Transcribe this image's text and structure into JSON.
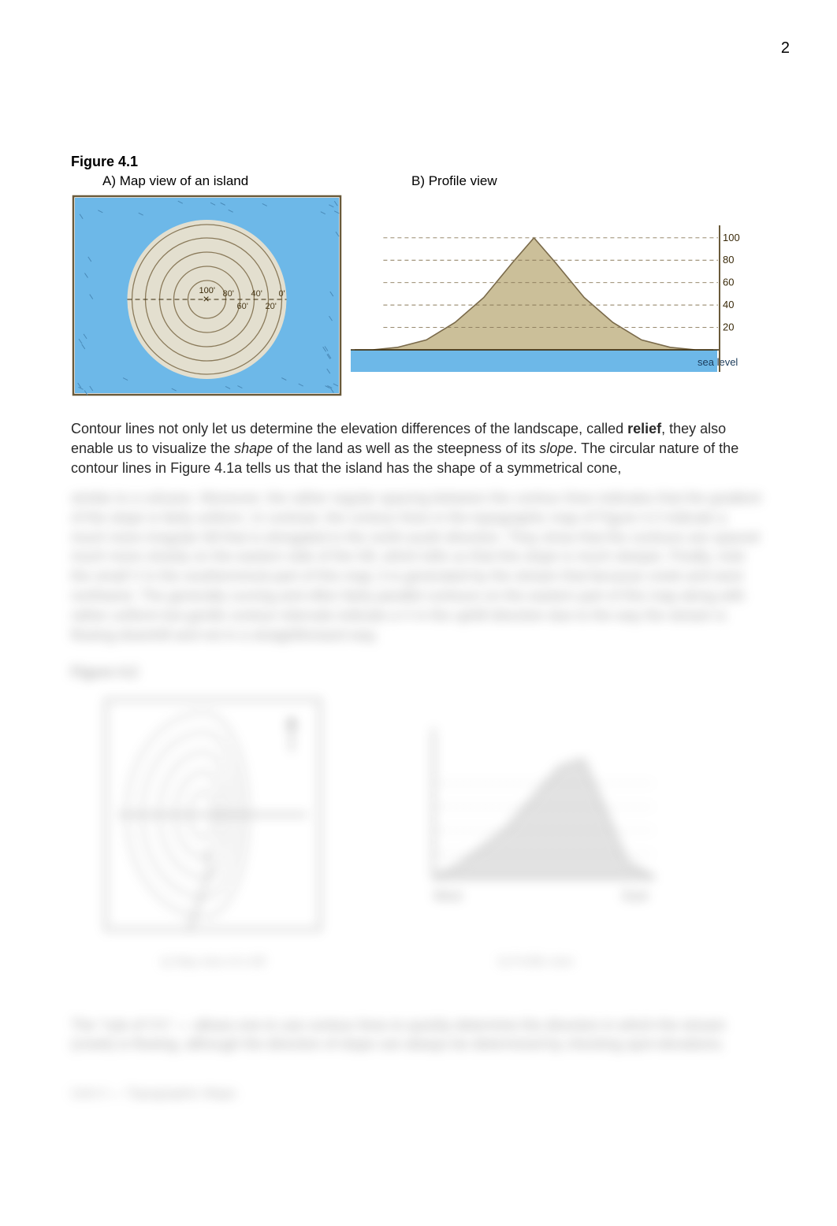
{
  "page_number": "2",
  "figure41": {
    "title": "Figure 4.1",
    "label_a": "A) Map view of an island",
    "label_b": "B) Profile view",
    "map": {
      "sea_color": "#6db8e8",
      "land_color": "#e3dfcf",
      "line_color": "#8a7a5a",
      "border_color": "#6a5a3a",
      "contours": [
        {
          "r": 95,
          "label": "0'"
        },
        {
          "r": 78,
          "label": "20'"
        },
        {
          "r": 60,
          "label": "40'"
        },
        {
          "r": 42,
          "label": "60'"
        },
        {
          "r": 24,
          "label": "80'"
        }
      ],
      "peak_label": "100'"
    },
    "profile": {
      "sea_color": "#6db8e8",
      "land_fill": "#cbbf99",
      "land_stroke": "#7a6a4a",
      "sea_level_label": "sea level",
      "ticks": [
        "100",
        "80",
        "60",
        "40",
        "20"
      ],
      "curve": [
        [
          0.05,
          0.0
        ],
        [
          0.12,
          0.02
        ],
        [
          0.2,
          0.08
        ],
        [
          0.28,
          0.22
        ],
        [
          0.36,
          0.42
        ],
        [
          0.44,
          0.7
        ],
        [
          0.5,
          0.9
        ],
        [
          0.56,
          0.7
        ],
        [
          0.64,
          0.42
        ],
        [
          0.72,
          0.22
        ],
        [
          0.8,
          0.08
        ],
        [
          0.88,
          0.02
        ],
        [
          0.95,
          0.0
        ]
      ]
    }
  },
  "body_paragraph": {
    "t1": "Contour lines not only let us determine the elevation differences of the landscape, called ",
    "b1": "relief",
    "t2": ", they also enable us to visualize the ",
    "i1": "shape",
    "t3": " of the land as well as the steepness of its ",
    "i2": "slope",
    "t4": ". The circular nature of the contour lines in Figure 4.1a tells us that the island has the shape of a symmetrical cone,"
  },
  "blur": {
    "para": "similar to a volcano. Moreover, the rather regular spacing between the contour lines indicates that the gradient of the slope is fairly uniform. In contrast, the contour lines in the topographic map of Figure 4.2 indicate a much more irregular hill that is elongated in the north-south direction. They show that the contours are spaced much more closely on the eastern side of the hill, which tells us that this slope is much steeper. Finally, note the small V in the southernmost part of this map; it is generated by the stream that because creek and west northwest. The generally curving and often fairly parallel contours on the eastern part of this map along with rather uniform but gentle contour intervals indicate a V in the uphill direction due to the way the stream is flowing downhill and not in a straightforward way.",
    "fig_title": "Figure 4.2",
    "caption_a": "a) Map view of a hill",
    "caption_b": "b) Profile view",
    "para2": "The \"rule of V's\" — allows one to use contour lines to quickly determine the direction in which the stream (creek) is flowing, although the direction of slope can always be determined by checking spot elevations.",
    "footer": "Unit 4 — Topographic Maps"
  }
}
